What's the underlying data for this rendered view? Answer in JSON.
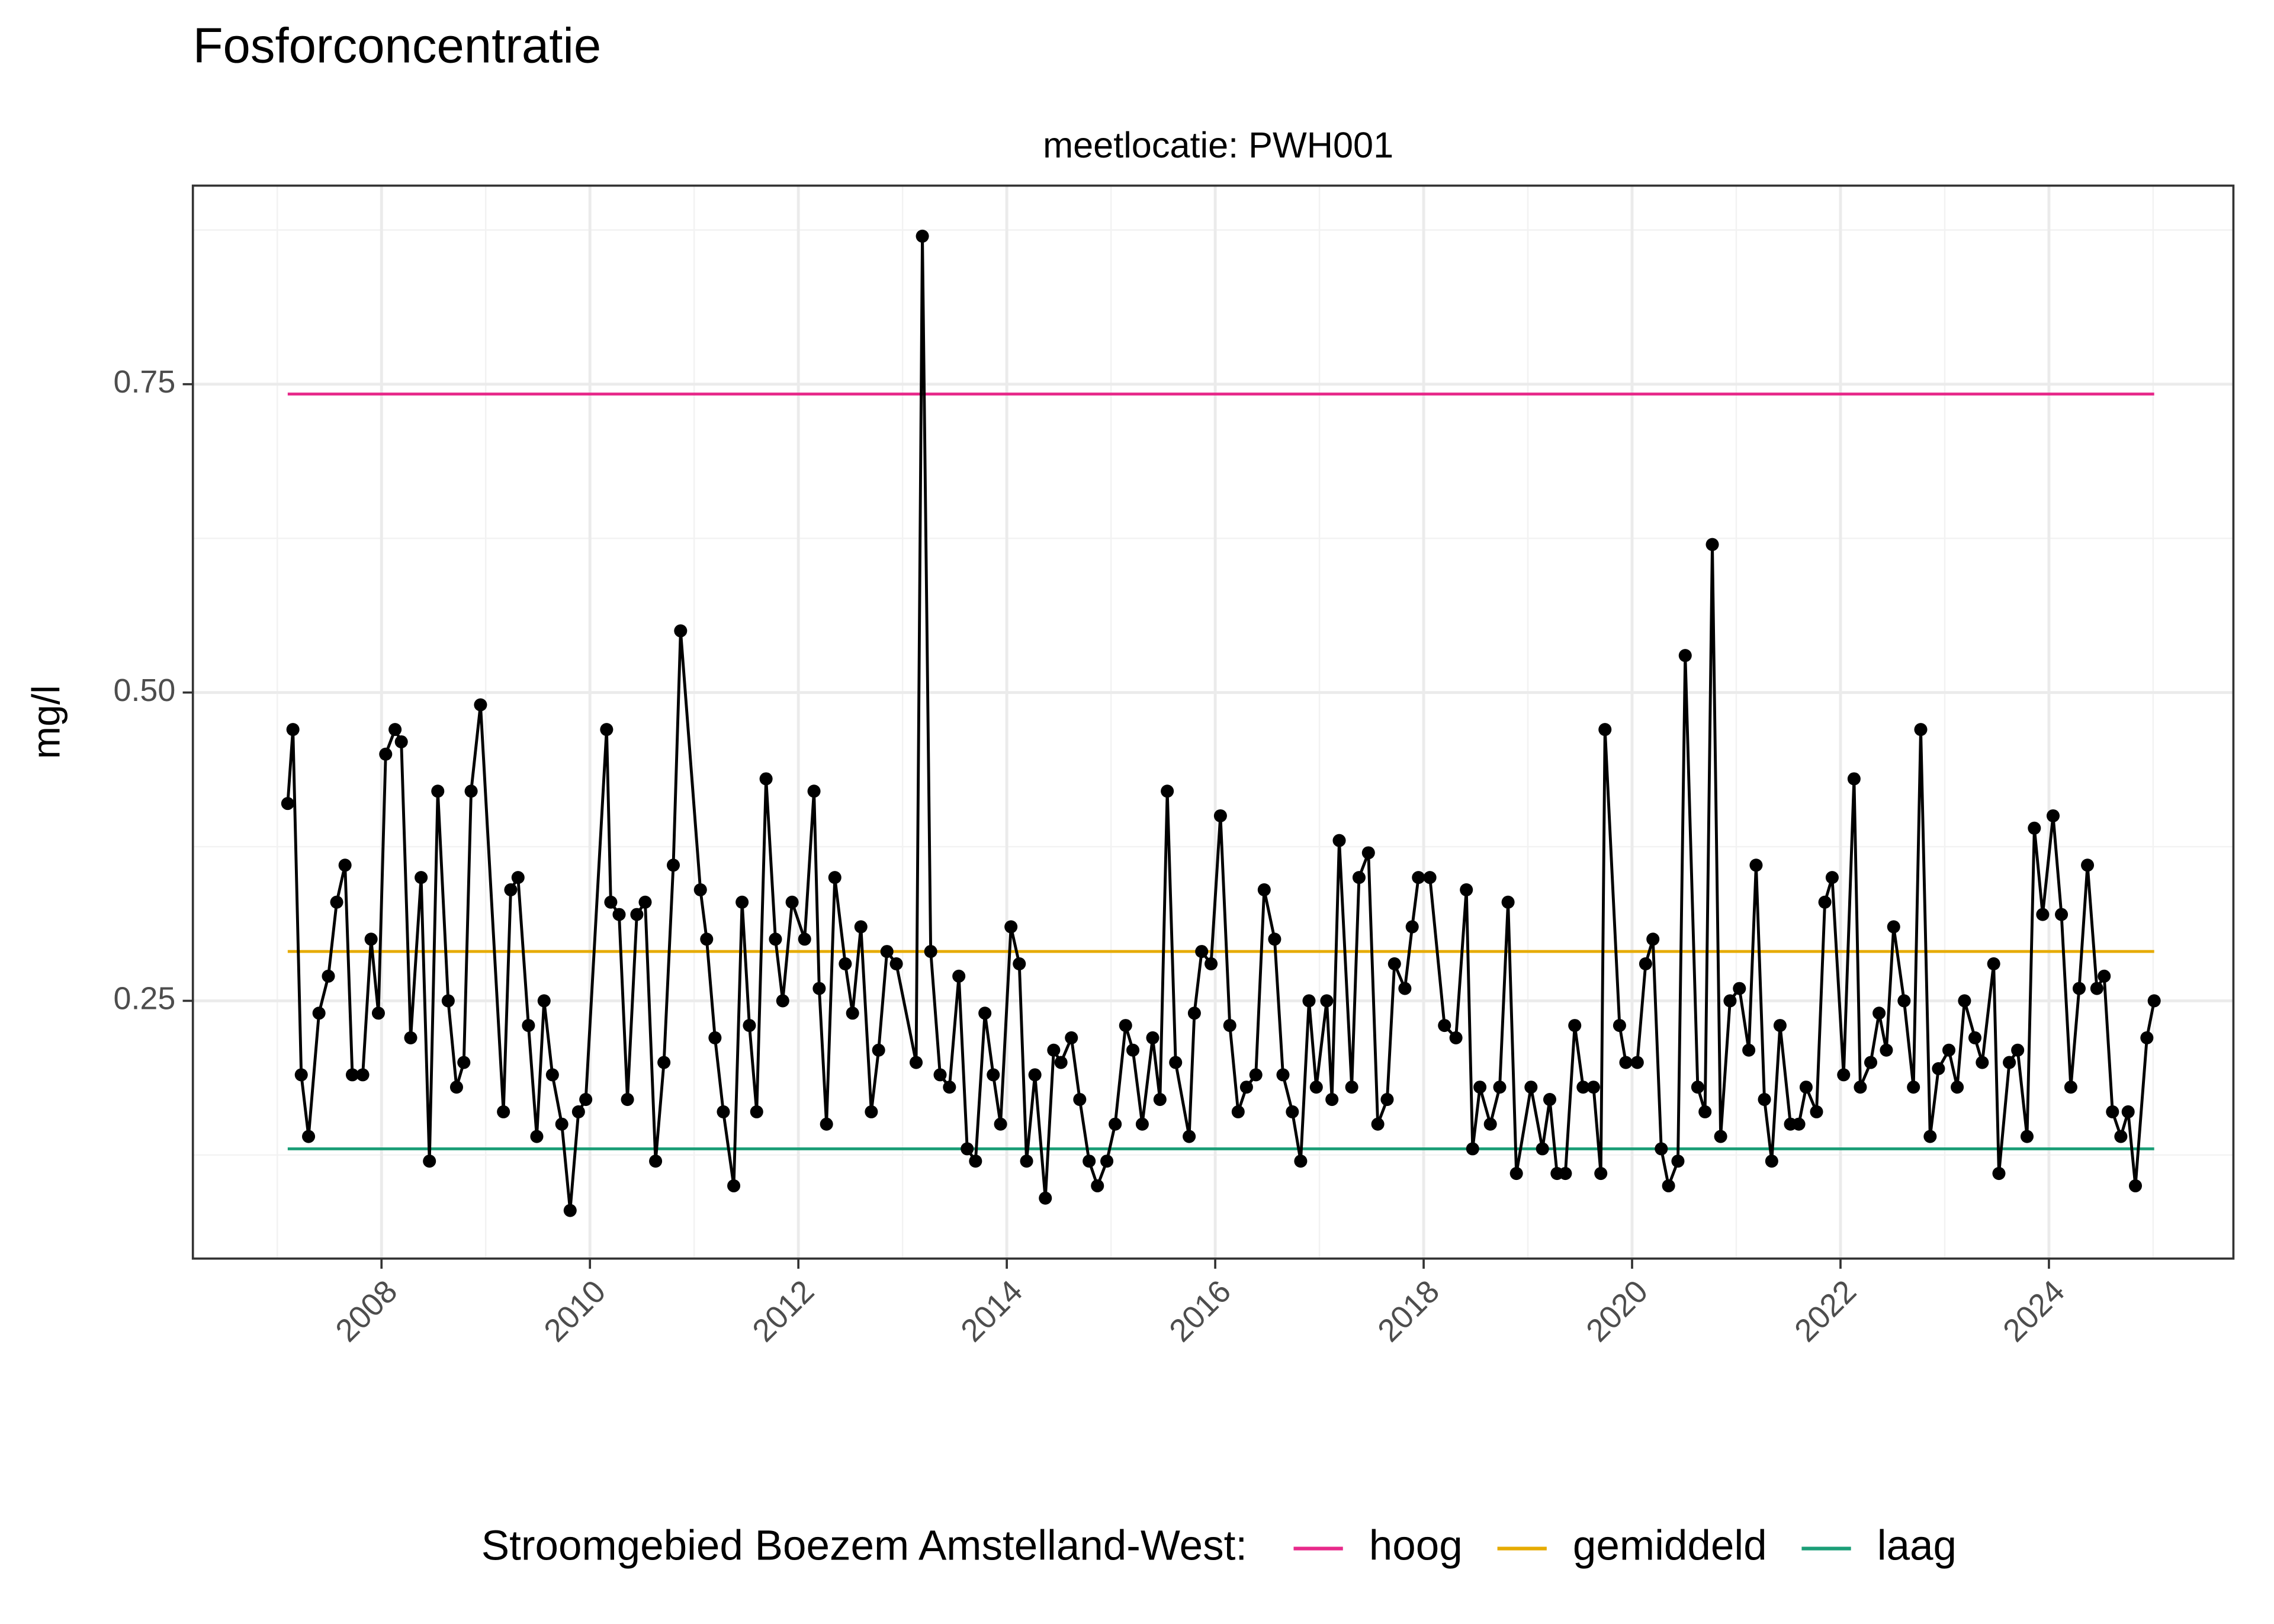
{
  "chart_data": {
    "type": "line",
    "title": "Fosforconcentratie",
    "subtitle": "meetlocatie: PWH001",
    "y_label": "mg/l",
    "legend_title": "Stroomgebied Boezem Amstelland-West:",
    "legend_position": "bottom",
    "grid": true,
    "xlim": [
      2006.19,
      2025.77
    ],
    "ylim": [
      0.041,
      0.911
    ],
    "xticks": [
      2008,
      2010,
      2012,
      2014,
      2016,
      2018,
      2020,
      2022,
      2024
    ],
    "yticks": [
      0.25,
      {
        "value": 0.5,
        "label": "0.50"
      },
      0.75
    ],
    "series": [
      {
        "color": "#000000",
        "x": [
          2007.1,
          2007.15,
          2007.23,
          2007.3,
          2007.4,
          2007.49,
          2007.57,
          2007.65,
          2007.72,
          2007.82,
          2007.9,
          2007.97,
          2008.04,
          2008.13,
          2008.19,
          2008.28,
          2008.38,
          2008.46,
          2008.54,
          2008.64,
          2008.72,
          2008.79,
          2008.86,
          2008.95,
          2009.17,
          2009.24,
          2009.31,
          2009.41,
          2009.49,
          2009.56,
          2009.64,
          2009.73,
          2009.81,
          2009.89,
          2009.96,
          2010.16,
          2010.2,
          2010.28,
          2010.36,
          2010.45,
          2010.53,
          2010.63,
          2010.71,
          2010.8,
          2010.87,
          2011.06,
          2011.12,
          2011.2,
          2011.28,
          2011.38,
          2011.46,
          2011.53,
          2011.6,
          2011.69,
          2011.78,
          2011.85,
          2011.94,
          2012.06,
          2012.15,
          2012.2,
          2012.27,
          2012.35,
          2012.45,
          2012.52,
          2012.6,
          2012.7,
          2012.77,
          2012.85,
          2012.94,
          2013.13,
          2013.19,
          2013.27,
          2013.36,
          2013.45,
          2013.54,
          2013.62,
          2013.7,
          2013.79,
          2013.87,
          2013.94,
          2014.04,
          2014.12,
          2014.19,
          2014.27,
          2014.37,
          2014.45,
          2014.52,
          2014.62,
          2014.7,
          2014.79,
          2014.87,
          2014.96,
          2015.04,
          2015.14,
          2015.21,
          2015.3,
          2015.4,
          2015.47,
          2015.54,
          2015.62,
          2015.75,
          2015.8,
          2015.87,
          2015.96,
          2016.05,
          2016.14,
          2016.22,
          2016.3,
          2016.39,
          2016.47,
          2016.57,
          2016.65,
          2016.74,
          2016.82,
          2016.9,
          2016.97,
          2017.07,
          2017.12,
          2017.19,
          2017.31,
          2017.38,
          2017.47,
          2017.56,
          2017.65,
          2017.72,
          2017.82,
          2017.89,
          2017.95,
          2018.06,
          2018.2,
          2018.31,
          2018.41,
          2018.47,
          2018.54,
          2018.64,
          2018.73,
          2018.81,
          2018.89,
          2019.03,
          2019.14,
          2019.21,
          2019.28,
          2019.36,
          2019.45,
          2019.53,
          2019.63,
          2019.7,
          2019.74,
          2019.88,
          2019.94,
          2020.05,
          2020.13,
          2020.2,
          2020.28,
          2020.35,
          2020.44,
          2020.51,
          2020.63,
          2020.7,
          2020.77,
          2020.85,
          2020.94,
          2021.03,
          2021.12,
          2021.19,
          2021.27,
          2021.34,
          2021.42,
          2021.52,
          2021.6,
          2021.67,
          2021.77,
          2021.85,
          2021.92,
          2022.03,
          2022.13,
          2022.19,
          2022.29,
          2022.37,
          2022.44,
          2022.51,
          2022.61,
          2022.7,
          2022.77,
          2022.86,
          2022.94,
          2023.04,
          2023.12,
          2023.19,
          2023.29,
          2023.36,
          2023.47,
          2023.52,
          2023.62,
          2023.7,
          2023.79,
          2023.86,
          2023.94,
          2024.04,
          2024.12,
          2024.21,
          2024.29,
          2024.37,
          2024.46,
          2024.53,
          2024.61,
          2024.69,
          2024.76,
          2024.83,
          2024.94,
          2025.01
        ],
        "values": [
          0.41,
          0.47,
          0.19,
          0.14,
          0.24,
          0.27,
          0.33,
          0.36,
          0.19,
          0.19,
          0.3,
          0.24,
          0.45,
          0.47,
          0.46,
          0.22,
          0.35,
          0.12,
          0.42,
          0.25,
          0.18,
          0.2,
          0.42,
          0.49,
          0.16,
          0.34,
          0.35,
          0.23,
          0.14,
          0.25,
          0.19,
          0.15,
          0.08,
          0.16,
          0.17,
          0.47,
          0.33,
          0.32,
          0.17,
          0.32,
          0.33,
          0.12,
          0.2,
          0.36,
          0.55,
          0.34,
          0.3,
          0.22,
          0.16,
          0.1,
          0.33,
          0.23,
          0.16,
          0.43,
          0.3,
          0.25,
          0.33,
          0.3,
          0.42,
          0.26,
          0.15,
          0.35,
          0.28,
          0.24,
          0.31,
          0.16,
          0.21,
          0.29,
          0.28,
          0.2,
          0.87,
          0.29,
          0.19,
          0.18,
          0.27,
          0.13,
          0.12,
          0.24,
          0.19,
          0.15,
          0.31,
          0.28,
          0.12,
          0.19,
          0.09,
          0.21,
          0.2,
          0.22,
          0.17,
          0.12,
          0.1,
          0.12,
          0.15,
          0.23,
          0.21,
          0.15,
          0.22,
          0.17,
          0.42,
          0.2,
          0.14,
          0.24,
          0.29,
          0.28,
          0.4,
          0.23,
          0.16,
          0.18,
          0.19,
          0.34,
          0.3,
          0.19,
          0.16,
          0.12,
          0.25,
          0.18,
          0.25,
          0.17,
          0.38,
          0.18,
          0.35,
          0.37,
          0.15,
          0.17,
          0.28,
          0.26,
          0.31,
          0.35,
          0.35,
          0.23,
          0.22,
          0.34,
          0.13,
          0.18,
          0.15,
          0.18,
          0.33,
          0.11,
          0.18,
          0.13,
          0.17,
          0.11,
          0.11,
          0.23,
          0.18,
          0.18,
          0.11,
          0.47,
          0.23,
          0.2,
          0.2,
          0.28,
          0.3,
          0.13,
          0.1,
          0.12,
          0.53,
          0.18,
          0.16,
          0.62,
          0.14,
          0.25,
          0.26,
          0.21,
          0.36,
          0.17,
          0.12,
          0.23,
          0.15,
          0.15,
          0.18,
          0.16,
          0.33,
          0.35,
          0.19,
          0.43,
          0.18,
          0.2,
          0.24,
          0.21,
          0.31,
          0.25,
          0.18,
          0.47,
          0.14,
          0.195,
          0.21,
          0.18,
          0.25,
          0.22,
          0.2,
          0.28,
          0.11,
          0.2,
          0.21,
          0.14,
          0.39,
          0.32,
          0.4,
          0.32,
          0.18,
          0.26,
          0.36,
          0.26,
          0.27,
          0.16,
          0.14,
          0.16,
          0.1,
          0.22,
          0.25
        ]
      }
    ],
    "reference_lines": [
      {
        "name": "hoog",
        "color": "#e7298a",
        "value": 0.742
      },
      {
        "name": "gemiddeld",
        "color": "#e6ab02",
        "value": 0.29
      },
      {
        "name": "laag",
        "color": "#1b9e77",
        "value": 0.13
      }
    ]
  }
}
